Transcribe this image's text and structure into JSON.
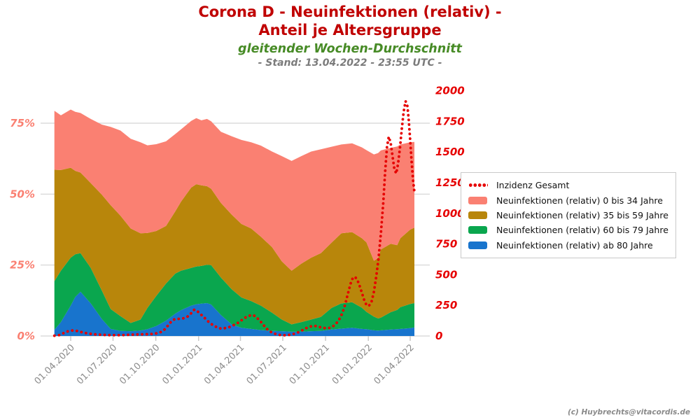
{
  "header": {
    "title_line1": "Corona D - Neuinfektionen (relativ) -",
    "title_line2": "Anteil je Altersgruppe",
    "subtitle": "gleitender Wochen-Durchschnitt",
    "stand": "- Stand: 13.04.2022 - 23:55 UTC -"
  },
  "footer": {
    "credit": "(c) Huybrechts@vitacordis.de"
  },
  "chart_data": {
    "type": "area",
    "stacked": true,
    "title": "Corona D - Neuinfektionen (relativ) - Anteil je Altersgruppe",
    "subtitle": "gleitender Wochen-Durchschnitt",
    "grid": "horizontal-only",
    "left_axis": {
      "unit": "%",
      "values": [
        0,
        25,
        50,
        75
      ],
      "labels": [
        "0%",
        "25%",
        "50%",
        "75%"
      ],
      "color": "#fa8072"
    },
    "right_axis": {
      "unit": "Inzidenz",
      "values": [
        0,
        250,
        500,
        750,
        1000,
        1250,
        1500,
        1750,
        2000
      ],
      "labels": [
        "0",
        "250",
        "500",
        "750",
        "1000",
        "1250",
        "1500",
        "1750",
        "2000"
      ],
      "max": 2000,
      "color": "#e60000"
    },
    "x_axis": {
      "tick_labels": [
        "01.04.2020",
        "01.07.2020",
        "01.10.2020",
        "01.01.2021",
        "01.04.2021",
        "01.07.2021",
        "01.10.2021",
        "01.01.2022",
        "01.04.2022"
      ],
      "tick_dates": [
        "2020-04-01",
        "2020-07-01",
        "2020-10-01",
        "2021-01-01",
        "2021-04-01",
        "2021-07-01",
        "2021-10-01",
        "2022-01-01",
        "2022-04-01"
      ],
      "color": "#8c8c8c"
    },
    "dates": [
      "2020-02-26",
      "2020-03-11",
      "2020-04-01",
      "2020-04-11",
      "2020-04-22",
      "2020-05-14",
      "2020-06-07",
      "2020-06-26",
      "2020-07-17",
      "2020-08-08",
      "2020-08-29",
      "2020-09-13",
      "2020-10-02",
      "2020-10-23",
      "2020-11-12",
      "2020-11-24",
      "2020-12-16",
      "2020-12-27",
      "2021-01-07",
      "2021-01-19",
      "2021-01-28",
      "2021-02-18",
      "2021-03-13",
      "2021-04-03",
      "2021-04-24",
      "2021-05-15",
      "2021-06-08",
      "2021-06-29",
      "2021-07-20",
      "2021-08-10",
      "2021-08-31",
      "2021-09-21",
      "2021-10-14",
      "2021-11-04",
      "2021-11-27",
      "2021-12-18",
      "2021-12-28",
      "2022-01-13",
      "2022-01-22",
      "2022-01-28",
      "2022-02-18",
      "2022-03-04",
      "2022-03-11",
      "2022-04-01",
      "2022-04-10"
    ],
    "series": [
      {
        "name": "Neuinfektionen (relativ) ab 80 Jahre",
        "color": "#1874cd",
        "values": [
          2.2,
          4.9,
          10.7,
          13.8,
          15.6,
          11.5,
          6.0,
          2.5,
          1.8,
          1.7,
          1.9,
          2.4,
          3.5,
          5.4,
          7.9,
          9.1,
          10.7,
          11.2,
          11.4,
          11.6,
          11.1,
          7.4,
          4.1,
          2.9,
          2.5,
          2.1,
          1.8,
          1.7,
          1.5,
          1.5,
          1.7,
          1.8,
          2.3,
          2.6,
          2.9,
          2.5,
          2.4,
          2.0,
          1.9,
          2.0,
          2.3,
          2.4,
          2.5,
          2.8,
          3.0
        ]
      },
      {
        "name": "Neuinfektionen (relativ) 60 bis 79 Jahre",
        "color": "#0aa64e",
        "values": [
          17.1,
          18.1,
          16.9,
          15.0,
          13.6,
          12.5,
          10.0,
          7.0,
          5.2,
          2.9,
          3.9,
          7.5,
          10.6,
          13.1,
          14.1,
          13.9,
          13.3,
          13.3,
          13.3,
          13.5,
          13.9,
          13.2,
          12.4,
          10.7,
          9.8,
          8.6,
          6.4,
          4.1,
          2.6,
          3.4,
          4.1,
          4.9,
          7.6,
          8.9,
          9.0,
          7.5,
          6.1,
          4.8,
          4.3,
          4.5,
          6.1,
          6.8,
          7.7,
          8.5,
          8.6
        ]
      },
      {
        "name": "Neuinfektionen (relativ) 35 bis 59 Jahre",
        "color": "#b8860b",
        "values": [
          39.3,
          35.5,
          31.7,
          29.4,
          28.4,
          29.9,
          33.8,
          36.6,
          35.4,
          33.3,
          30.4,
          26.4,
          22.9,
          20.3,
          22.0,
          24.3,
          28.3,
          29.0,
          28.4,
          27.7,
          26.9,
          26.3,
          26.3,
          25.9,
          25.6,
          24.3,
          23.1,
          20.5,
          18.9,
          20.6,
          21.8,
          22.5,
          23.0,
          24.7,
          24.7,
          24.5,
          24.5,
          19.7,
          21.3,
          24.0,
          24.1,
          22.8,
          24.3,
          26.2,
          26.6
        ]
      },
      {
        "name": "Neuinfektionen (relativ) 0 bis 34 Jahre",
        "color": "#fa8072",
        "values": [
          20.8,
          19.3,
          20.5,
          20.8,
          21.0,
          22.6,
          24.7,
          27.6,
          30.0,
          31.6,
          32.1,
          30.9,
          30.6,
          29.8,
          27.2,
          25.5,
          23.5,
          23.3,
          22.9,
          23.7,
          23.8,
          25.1,
          27.6,
          29.6,
          30.4,
          32.1,
          33.7,
          37.1,
          38.7,
          37.9,
          37.4,
          36.6,
          33.8,
          31.3,
          31.3,
          32.0,
          32.5,
          37.5,
          37.0,
          34.9,
          33.8,
          34.8,
          33.0,
          30.8,
          30.2
        ]
      }
    ],
    "incidence_line": {
      "name": "Inzidenz Gesamt",
      "color": "#e60000",
      "style": "dotted",
      "axis": "right",
      "dates": [
        "2020-02-26",
        "2020-03-08",
        "2020-03-16",
        "2020-03-24",
        "2020-04-01",
        "2020-04-08",
        "2020-04-16",
        "2020-04-24",
        "2020-05-02",
        "2020-05-12",
        "2020-05-24",
        "2020-06-06",
        "2020-06-18",
        "2020-06-30",
        "2020-07-12",
        "2020-07-24",
        "2020-08-05",
        "2020-08-17",
        "2020-08-29",
        "2020-09-10",
        "2020-09-22",
        "2020-10-04",
        "2020-10-14",
        "2020-10-22",
        "2020-10-29",
        "2020-11-05",
        "2020-11-12",
        "2020-11-20",
        "2020-11-28",
        "2020-12-06",
        "2020-12-13",
        "2020-12-19",
        "2020-12-23",
        "2020-12-28",
        "2021-01-04",
        "2021-01-12",
        "2021-01-20",
        "2021-01-28",
        "2021-02-05",
        "2021-02-13",
        "2021-02-21",
        "2021-03-01",
        "2021-03-10",
        "2021-03-19",
        "2021-03-28",
        "2021-04-06",
        "2021-04-14",
        "2021-04-22",
        "2021-04-29",
        "2021-05-06",
        "2021-05-14",
        "2021-05-22",
        "2021-05-30",
        "2021-06-08",
        "2021-06-17",
        "2021-06-26",
        "2021-07-05",
        "2021-07-14",
        "2021-07-23",
        "2021-08-01",
        "2021-08-10",
        "2021-08-19",
        "2021-08-28",
        "2021-09-05",
        "2021-09-13",
        "2021-09-21",
        "2021-09-29",
        "2021-10-07",
        "2021-10-15",
        "2021-10-23",
        "2021-10-30",
        "2021-11-06",
        "2021-11-12",
        "2021-11-18",
        "2021-11-24",
        "2021-11-29",
        "2021-12-04",
        "2021-12-09",
        "2021-12-14",
        "2021-12-19",
        "2021-12-24",
        "2021-12-29",
        "2022-01-03",
        "2022-01-08",
        "2022-01-13",
        "2022-01-18",
        "2022-01-23",
        "2022-01-28",
        "2022-02-02",
        "2022-02-06",
        "2022-02-10",
        "2022-02-14",
        "2022-02-18",
        "2022-02-22",
        "2022-02-26",
        "2022-03-02",
        "2022-03-06",
        "2022-03-10",
        "2022-03-14",
        "2022-03-18",
        "2022-03-22",
        "2022-03-26",
        "2022-03-29",
        "2022-04-01",
        "2022-04-04",
        "2022-04-07",
        "2022-04-10"
      ],
      "values": [
        2,
        8,
        22,
        36,
        44,
        46,
        40,
        32,
        25,
        18,
        13,
        10,
        8,
        7,
        7,
        8,
        10,
        12,
        13,
        14,
        16,
        22,
        35,
        60,
        95,
        125,
        140,
        140,
        143,
        152,
        172,
        200,
        215,
        207,
        182,
        155,
        124,
        98,
        80,
        64,
        60,
        66,
        75,
        92,
        110,
        136,
        156,
        168,
        170,
        150,
        119,
        83,
        49,
        27,
        15,
        8,
        6,
        9,
        15,
        26,
        42,
        62,
        76,
        83,
        80,
        70,
        65,
        64,
        73,
        97,
        132,
        185,
        255,
        345,
        430,
        478,
        480,
        452,
        402,
        342,
        282,
        246,
        250,
        282,
        362,
        485,
        635,
        835,
        1085,
        1330,
        1540,
        1625,
        1575,
        1465,
        1360,
        1325,
        1405,
        1535,
        1690,
        1830,
        1915,
        1875,
        1755,
        1595,
        1425,
        1275,
        1175
      ]
    },
    "legend": {
      "position": "right",
      "items": [
        {
          "label": "Inzidenz Gesamt",
          "type": "dotted-line",
          "color": "#e60000"
        },
        {
          "label": "Neuinfektionen (relativ) 0 bis 34 Jahre",
          "type": "swatch",
          "color": "#fa8072"
        },
        {
          "label": "Neuinfektionen (relativ) 35 bis 59 Jahre",
          "type": "swatch",
          "color": "#b8860b"
        },
        {
          "label": "Neuinfektionen (relativ) 60 bis 79 Jahre",
          "type": "swatch",
          "color": "#0aa64e"
        },
        {
          "label": "Neuinfektionen (relativ) ab 80 Jahre",
          "type": "swatch",
          "color": "#1874cd"
        }
      ]
    }
  }
}
